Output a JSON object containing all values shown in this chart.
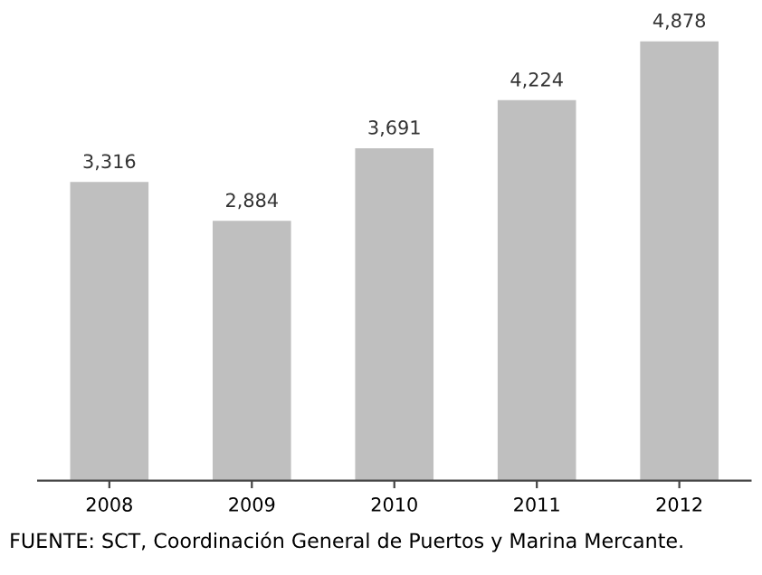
{
  "chart_data": {
    "type": "bar",
    "categories": [
      "2008",
      "2009",
      "2010",
      "2011",
      "2012"
    ],
    "values": [
      3316,
      2884,
      3691,
      4224,
      4878
    ],
    "value_labels": [
      "3,316",
      "2,884",
      "3,691",
      "4,224",
      "4,878"
    ],
    "color": "#bfbfbf",
    "annotations": [
      "FUENTE: SCT, Coordinación General de Puertos y Marina Mercante."
    ]
  }
}
